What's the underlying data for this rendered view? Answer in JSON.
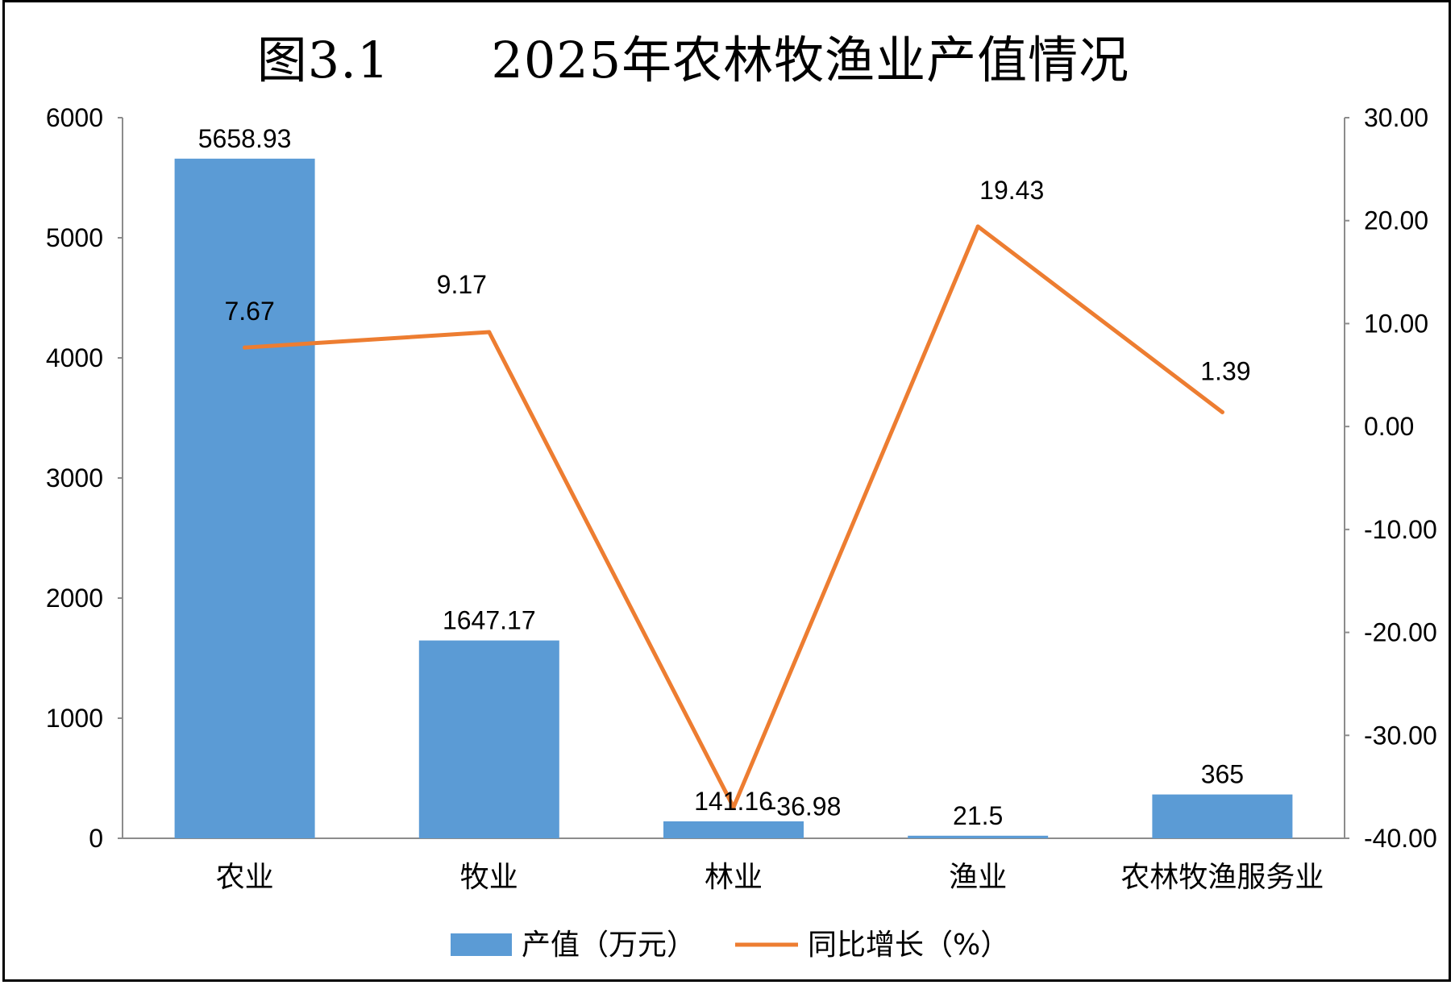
{
  "chart_data": {
    "type": "bar+line",
    "title": "图3.1　　2025年农林牧渔业产值情况",
    "categories": [
      "农业",
      "牧业",
      "林业",
      "渔业",
      "农林牧渔服务业"
    ],
    "series": [
      {
        "name": "产值（万元）",
        "type": "bar",
        "axis": "left",
        "values": [
          5658.93,
          1647.17,
          141.16,
          21.5,
          365
        ],
        "labels": [
          "5658.93",
          "1647.17",
          "141.16",
          "21.5",
          "365"
        ],
        "color": "#5B9BD5"
      },
      {
        "name": "同比增长（%）",
        "type": "line",
        "axis": "right",
        "values": [
          7.67,
          9.17,
          -36.98,
          19.43,
          1.39
        ],
        "labels": [
          "7.67",
          "9.17",
          "-36.98",
          "19.43",
          "1.39"
        ],
        "color": "#ED7D31"
      }
    ],
    "y_left": {
      "min": 0,
      "max": 6000,
      "ticks": [
        "0",
        "1000",
        "2000",
        "3000",
        "4000",
        "5000",
        "6000"
      ]
    },
    "y_right": {
      "min": -40,
      "max": 30,
      "ticks": [
        "-40.00",
        "-30.00",
        "-20.00",
        "-10.00",
        "0.00",
        "10.00",
        "20.00",
        "30.00"
      ]
    },
    "grid": false,
    "legend_position": "bottom"
  }
}
